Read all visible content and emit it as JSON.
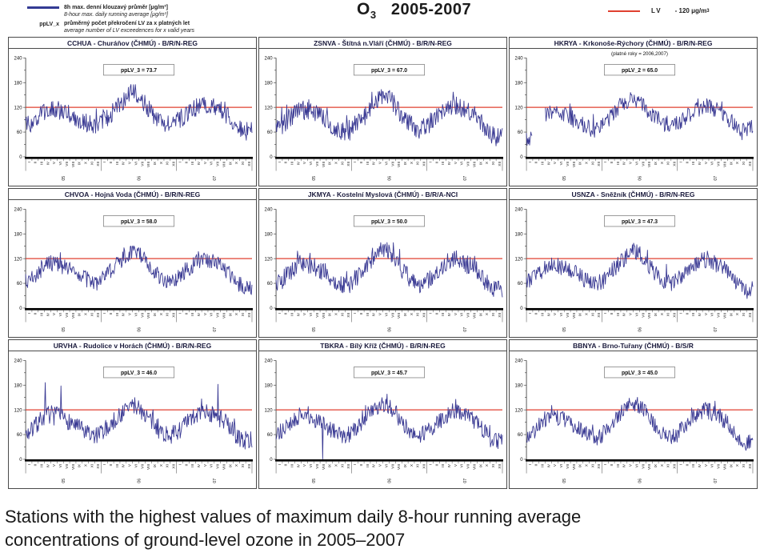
{
  "header": {
    "legend_series": {
      "label_cs": "8h max. denní klouzavý průměr [μg/m³]",
      "label_en": "8-hour max. daily running average [μg/m³]",
      "color": "#333b94"
    },
    "legend_pplv": {
      "term": "ppLV_x",
      "label_cs": "průměrný počet překročení LV za x platných let",
      "label_en": "average number of LV exceedences for x valid years"
    },
    "title": {
      "pollutant": "O",
      "subscript": "3",
      "period": "2005-2007"
    },
    "legend_lv": {
      "label": "LV",
      "value": "- 120 μg/m",
      "superscript": "3",
      "color": "#e04030"
    }
  },
  "axis": {
    "y_ticks": [
      240,
      180,
      120,
      60,
      0
    ],
    "y_max": 240,
    "lv_value": 120,
    "months": [
      "I",
      "II",
      "III",
      "IV",
      "V",
      "VI",
      "VII",
      "VIII",
      "IX",
      "X",
      "XI",
      "XII"
    ],
    "years": [
      "05",
      "06",
      "07"
    ],
    "series_color": "#3b3b94",
    "lv_color": "#e04030"
  },
  "chart_data": [
    {
      "type": "line",
      "title": "CCHUA - Churáňov (ČHMÚ) - B/R/N-REG",
      "subtitle": "",
      "pplv_label": "ppLV_3 = 73.7",
      "unit": "μg/m³",
      "seed": 1,
      "noise": 22,
      "values_monthly": [
        75,
        80,
        95,
        110,
        118,
        114,
        108,
        104,
        95,
        85,
        80,
        78,
        85,
        95,
        112,
        128,
        142,
        158,
        150,
        126,
        106,
        90,
        80,
        82,
        86,
        96,
        110,
        120,
        130,
        126,
        120,
        114,
        100,
        85,
        70,
        62
      ]
    },
    {
      "type": "line",
      "title": "ZSNVA - Štítná n.Vláří (ČHMÚ) - B/R/N-REG",
      "subtitle": "",
      "pplv_label": "ppLV_3 = 67.0",
      "unit": "μg/m³",
      "seed": 2,
      "noise": 23,
      "values_monthly": [
        70,
        76,
        90,
        106,
        114,
        110,
        104,
        100,
        90,
        76,
        66,
        60,
        72,
        86,
        102,
        120,
        136,
        150,
        144,
        120,
        100,
        84,
        70,
        66,
        76,
        90,
        104,
        116,
        126,
        120,
        114,
        108,
        94,
        76,
        56,
        48
      ]
    },
    {
      "type": "line",
      "title": "HKRYA - Krkonoše-Rýchory (ČHMÚ) - B/R/N-REG",
      "subtitle": "(platné roky = 2006,2007)",
      "pplv_label": "ppLV_2 = 65.0",
      "unit": "μg/m³",
      "seed": 3,
      "noise": 20,
      "values_monthly": [
        45,
        null,
        null,
        106,
        110,
        106,
        100,
        95,
        86,
        76,
        70,
        66,
        76,
        90,
        110,
        126,
        136,
        140,
        134,
        120,
        104,
        90,
        80,
        78,
        80,
        90,
        104,
        114,
        124,
        120,
        114,
        108,
        94,
        76,
        56,
        70
      ]
    },
    {
      "type": "line",
      "title": "CHVOA - Hojná Voda (ČHMÚ) - B/R/N-REG",
      "subtitle": "",
      "pplv_label": "ppLV_3 = 58.0",
      "unit": "μg/m³",
      "seed": 4,
      "noise": 20,
      "values_monthly": [
        65,
        70,
        85,
        100,
        110,
        106,
        100,
        95,
        86,
        76,
        66,
        60,
        68,
        80,
        96,
        114,
        130,
        140,
        134,
        114,
        96,
        80,
        68,
        62,
        70,
        82,
        96,
        110,
        120,
        116,
        110,
        104,
        90,
        72,
        56,
        50
      ]
    },
    {
      "type": "line",
      "title": "JKMYA - Kostelní Myslová (ČHMÚ) - B/R/A-NCI",
      "subtitle": "",
      "pplv_label": "ppLV_3 = 50.0",
      "unit": "μg/m³",
      "seed": 5,
      "noise": 22,
      "values_monthly": [
        60,
        68,
        85,
        100,
        110,
        105,
        100,
        92,
        82,
        70,
        58,
        52,
        62,
        78,
        95,
        115,
        132,
        145,
        138,
        115,
        92,
        75,
        60,
        55,
        65,
        80,
        95,
        110,
        122,
        118,
        110,
        102,
        88,
        68,
        50,
        45
      ]
    },
    {
      "type": "line",
      "title": "USNZA - Sněžník (ČHMÚ) - B/R/N-REG",
      "subtitle": "",
      "pplv_label": "ppLV_3 = 47.3",
      "unit": "μg/m³",
      "seed": 6,
      "noise": 20,
      "values_monthly": [
        62,
        70,
        85,
        98,
        108,
        102,
        98,
        92,
        82,
        72,
        62,
        58,
        66,
        80,
        96,
        112,
        128,
        138,
        132,
        112,
        92,
        76,
        64,
        60,
        68,
        82,
        96,
        108,
        118,
        114,
        108,
        100,
        86,
        68,
        52,
        48
      ]
    },
    {
      "type": "line",
      "title": "URVHA - Rudolice v Horách (ČHMÚ) - B/R/N-REG",
      "subtitle": "",
      "pplv_label": "ppLV_3 = 46.0",
      "unit": "μg/m³",
      "seed": 7,
      "noise": 22,
      "spikes": [
        {
          "m": 3.1,
          "v": 186
        },
        {
          "m": 5.6,
          "v": 178
        },
        {
          "m": 30.5,
          "v": 182
        }
      ],
      "values_monthly": [
        60,
        70,
        90,
        105,
        110,
        105,
        98,
        92,
        82,
        70,
        60,
        55,
        64,
        78,
        92,
        108,
        122,
        132,
        126,
        108,
        90,
        74,
        62,
        58,
        66,
        80,
        94,
        106,
        116,
        112,
        106,
        98,
        84,
        66,
        50,
        46
      ]
    },
    {
      "type": "line",
      "title": "TBKRA - Bílý Kříž (ČHMÚ) - B/R/N-REG",
      "subtitle": "",
      "pplv_label": "ppLV_3 = 45.7",
      "unit": "μg/m³",
      "seed": 8,
      "noise": 20,
      "dropouts": [
        7.4
      ],
      "values_monthly": [
        62,
        70,
        86,
        100,
        108,
        103,
        97,
        90,
        80,
        70,
        60,
        56,
        64,
        78,
        94,
        110,
        124,
        134,
        128,
        110,
        90,
        74,
        62,
        58,
        66,
        80,
        94,
        106,
        116,
        112,
        105,
        98,
        84,
        66,
        50,
        45
      ]
    },
    {
      "type": "line",
      "title": "BBNYA - Brno-Tuřany (ČHMÚ) - B/S/R",
      "subtitle": "",
      "pplv_label": "ppLV_3 = 45.0",
      "unit": "μg/m³",
      "seed": 9,
      "noise": 20,
      "values_monthly": [
        55,
        64,
        82,
        98,
        108,
        102,
        96,
        88,
        78,
        66,
        55,
        50,
        60,
        75,
        92,
        110,
        126,
        136,
        130,
        110,
        88,
        72,
        58,
        52,
        62,
        78,
        94,
        108,
        120,
        116,
        108,
        100,
        84,
        64,
        46,
        40
      ]
    }
  ],
  "caption": {
    "line1": "Stations with the highest values of maximum daily 8-hour running average",
    "line2": "concentrations of ground-level ozone in 2005–2007"
  }
}
